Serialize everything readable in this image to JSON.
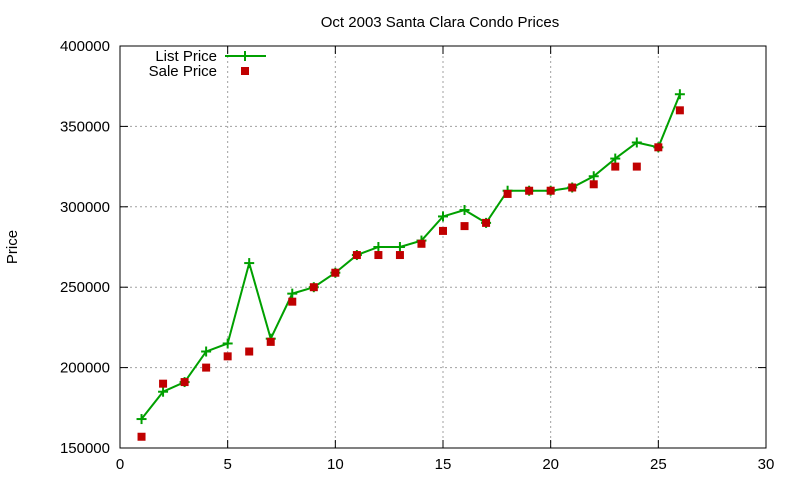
{
  "chart_data": {
    "type": "line",
    "title": "Oct 2003 Santa Clara Condo Prices",
    "xlabel": "",
    "ylabel": "Price",
    "xlim": [
      0,
      30
    ],
    "ylim": [
      150000,
      400000
    ],
    "xticks": [
      0,
      5,
      10,
      15,
      20,
      25,
      30
    ],
    "yticks": [
      150000,
      200000,
      250000,
      300000,
      350000,
      400000
    ],
    "grid": true,
    "legend_position": "top-left",
    "series": [
      {
        "name": "List Price",
        "style": "linespoints",
        "marker": "plus",
        "color": "#00a000",
        "x": [
          1,
          2,
          3,
          4,
          5,
          6,
          7,
          8,
          9,
          10,
          11,
          12,
          13,
          14,
          15,
          16,
          17,
          18,
          19,
          20,
          21,
          22,
          23,
          24,
          25,
          26
        ],
        "values": [
          168000,
          185000,
          191000,
          210000,
          215000,
          265000,
          218000,
          246000,
          250000,
          259000,
          270000,
          275000,
          275000,
          279000,
          294000,
          298000,
          290000,
          310000,
          310000,
          310000,
          312000,
          319000,
          330000,
          340000,
          337000,
          370000
        ]
      },
      {
        "name": "Sale Price",
        "style": "points",
        "marker": "square",
        "color": "#c00000",
        "x": [
          1,
          2,
          3,
          4,
          5,
          6,
          7,
          8,
          9,
          10,
          11,
          12,
          13,
          14,
          15,
          16,
          17,
          18,
          19,
          20,
          21,
          22,
          23,
          24,
          25,
          26
        ],
        "values": [
          157000,
          190000,
          191000,
          200000,
          207000,
          210000,
          216000,
          241000,
          250000,
          259000,
          270000,
          270000,
          270000,
          277000,
          285000,
          288000,
          290000,
          308000,
          310000,
          310000,
          312000,
          314000,
          325000,
          325000,
          337000,
          360000
        ]
      }
    ]
  }
}
